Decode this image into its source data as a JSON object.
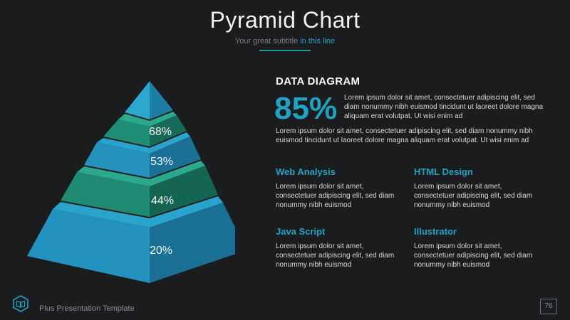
{
  "header": {
    "title": "Pyramid Chart",
    "subtitle_main": "Your great subtitle ",
    "subtitle_accent": "in this line"
  },
  "pyramid": {
    "levels": [
      {
        "label": "68%",
        "value": 68
      },
      {
        "label": "53%",
        "value": 53
      },
      {
        "label": "44%",
        "value": 44
      },
      {
        "label": "20%",
        "value": 20
      }
    ],
    "colors": {
      "blue": "#2596be",
      "teal": "#1f8a72"
    }
  },
  "content": {
    "heading": "DATA DIAGRAM",
    "big_number": "85%",
    "intro": "Lorem ipsum dolor sit amet, consectetuer adipiscing elit, sed diam nonummy nibh euismod tincidunt ut laoreet dolore magna aliquam erat volutpat. Ut wisi enim ad",
    "paragraph": "Lorem ipsum dolor sit amet, consectetuer adipiscing elit, sed diam nonummy nibh euismod tincidunt ut laoreet dolore magna aliquam erat volutpat. Ut wisi enim ad",
    "features": [
      {
        "title": "Web Analysis",
        "text": "Lorem ipsum dolor sit amet, consectetuer adipiscing elit, sed diam nonummy nibh euismod"
      },
      {
        "title": "HTML Design",
        "text": "Lorem ipsum dolor sit amet, consectetuer adipiscing elit, sed diam nonummy nibh euismod"
      },
      {
        "title": "Java Script",
        "text": "Lorem ipsum dolor sit amet, consectetuer adipiscing elit, sed diam nonummy nibh euismod"
      },
      {
        "title": "Illustrator",
        "text": "Lorem ipsum dolor sit amet, consectetuer adipiscing elit, sed diam nonummy nibh euismod"
      }
    ]
  },
  "footer": {
    "logo_icon": "book-hexagon-icon",
    "text": "Plus Presentation Template",
    "page_number": "76"
  }
}
